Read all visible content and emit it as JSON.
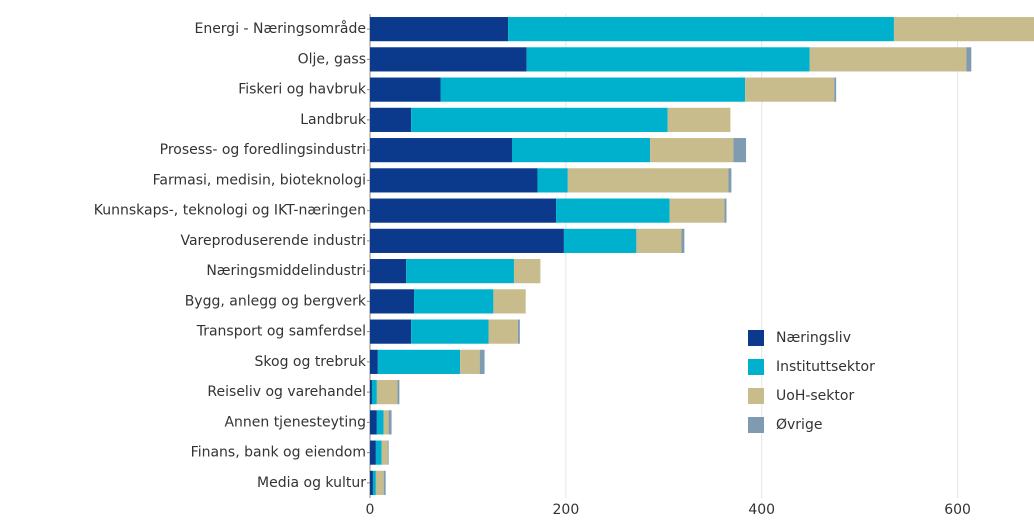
{
  "chart_data": {
    "type": "stacked-barh",
    "categories": [
      "Energi - Næringsområde",
      "Olje, gass",
      "Fiskeri og havbruk",
      "Landbruk",
      "Prosess- og foredlingsindustri",
      "Farmasi, medisin, bioteknologi",
      "Kunnskaps-, teknologi og IKT-næringen",
      "Vareproduserende industri",
      "Næringsmiddelindustri",
      "Bygg, anlegg og bergverk",
      "Transport og samferdsel",
      "Skog og trebruk",
      "Reiseliv og varehandel",
      "Annen tjenesteyting",
      "Finans, bank og eiendom",
      "Media og kultur"
    ],
    "series": [
      {
        "name": "Næringsliv",
        "color": "#0b3a8c",
        "values": [
          141,
          160,
          72,
          42,
          145,
          171,
          190,
          198,
          37,
          45,
          42,
          8,
          2,
          7,
          6,
          3
        ]
      },
      {
        "name": "Instituttsektor",
        "color": "#00b1cd",
        "values": [
          394,
          289,
          311,
          262,
          141,
          31,
          116,
          74,
          110,
          81,
          79,
          84,
          5,
          7,
          6,
          3
        ]
      },
      {
        "name": "UoH-sektor",
        "color": "#c8bc8c",
        "values": [
          180,
          160,
          91,
          64,
          85,
          164,
          56,
          46,
          27,
          33,
          30,
          20,
          21,
          5,
          6,
          8
        ]
      },
      {
        "name": "Øvrige",
        "color": "#7f9bb0",
        "values": [
          0,
          5,
          2,
          0,
          13,
          3,
          2,
          3,
          0,
          0,
          2,
          5,
          2,
          3,
          1,
          2
        ]
      }
    ],
    "xlim": [
      0,
      678
    ],
    "xticks": [
      0,
      200,
      400,
      600
    ],
    "grid": true,
    "legend": "lower right"
  }
}
